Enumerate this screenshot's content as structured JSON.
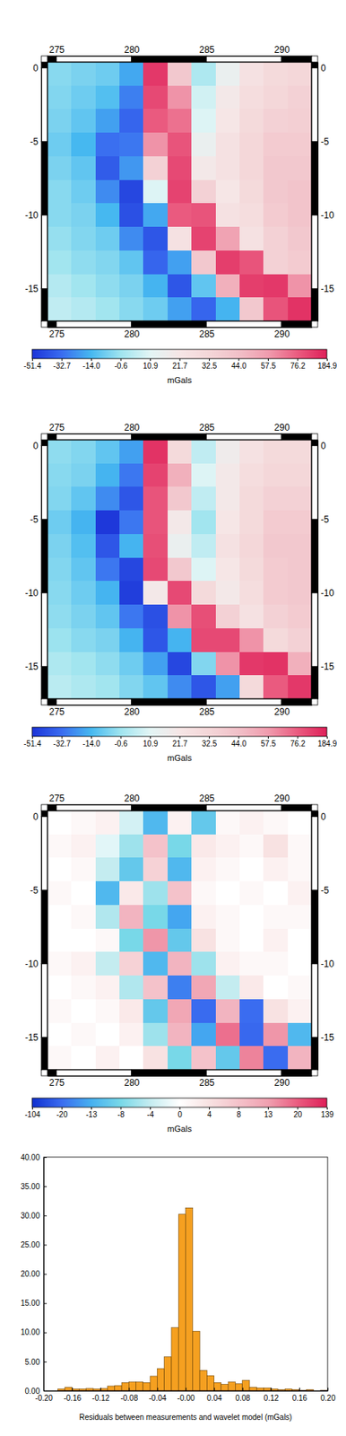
{
  "chart_data": [
    {
      "type": "heatmap",
      "xlim": [
        274.4,
        292.0
      ],
      "ylim": [
        -17.2,
        0.4
      ],
      "xticks": [
        275,
        280,
        285,
        290
      ],
      "yticks": [
        -15,
        -10,
        -5,
        0
      ],
      "x_edges": [
        274.4,
        276.0,
        277.6,
        279.2,
        280.8,
        282.4,
        284.0,
        285.6,
        287.2,
        288.8,
        290.4,
        292.0
      ],
      "y_edges": [
        0.4,
        -1.2,
        -2.8,
        -4.4,
        -6.0,
        -7.6,
        -9.2,
        -10.8,
        -12.4,
        -14.0,
        -15.6,
        -17.2
      ],
      "z": [
        [
          -4,
          -6,
          -8,
          -18,
          140,
          40,
          2,
          15,
          25,
          30,
          32
        ],
        [
          -5,
          -8,
          -12,
          -28,
          110,
          60,
          8,
          20,
          28,
          32,
          35
        ],
        [
          -6,
          -10,
          -20,
          -35,
          80,
          70,
          10,
          22,
          30,
          35,
          36
        ],
        [
          -8,
          -14,
          -32,
          -30,
          60,
          90,
          15,
          25,
          32,
          38,
          38
        ],
        [
          -6,
          -10,
          -38,
          -22,
          35,
          110,
          20,
          25,
          32,
          40,
          40
        ],
        [
          -4,
          -8,
          -25,
          -45,
          10,
          120,
          35,
          22,
          30,
          40,
          42
        ],
        [
          -4,
          -6,
          -14,
          -42,
          -18,
          80,
          90,
          25,
          28,
          38,
          42
        ],
        [
          -2,
          -5,
          -8,
          -25,
          -40,
          25,
          120,
          55,
          25,
          35,
          40
        ],
        [
          0,
          -3,
          -5,
          -10,
          -35,
          -20,
          40,
          130,
          90,
          35,
          38
        ],
        [
          3,
          0,
          -3,
          -6,
          -15,
          -40,
          -10,
          50,
          130,
          140,
          60
        ],
        [
          5,
          3,
          0,
          -4,
          -8,
          -20,
          -35,
          -15,
          40,
          90,
          150
        ]
      ],
      "colorbar": {
        "ticks": [
          -51.4,
          -32.7,
          {
            "value": -14,
            "label": "-14.0"
          },
          -0.6,
          10.9,
          21.7,
          32.5,
          {
            "value": 44,
            "label": "44.0"
          },
          57.5,
          76.2,
          184.9
        ],
        "label": "mGals"
      }
    },
    {
      "type": "heatmap",
      "xlim": [
        274.4,
        292.0
      ],
      "ylim": [
        -17.2,
        0.4
      ],
      "xticks": [
        275,
        280,
        285,
        290
      ],
      "yticks": [
        -15,
        -10,
        -5,
        0
      ],
      "x_edges": [
        274.4,
        276.0,
        277.6,
        279.2,
        280.8,
        282.4,
        284.0,
        285.6,
        287.2,
        288.8,
        290.4,
        292.0
      ],
      "y_edges": [
        0.4,
        -1.2,
        -2.8,
        -4.4,
        -6.0,
        -7.6,
        -9.2,
        -10.8,
        -12.4,
        -14.0,
        -15.6,
        -17.2
      ],
      "z": [
        [
          -3,
          -5,
          -10,
          -20,
          150,
          30,
          5,
          18,
          25,
          30,
          30
        ],
        [
          -4,
          -6,
          -15,
          -30,
          120,
          50,
          10,
          20,
          28,
          32,
          32
        ],
        [
          -5,
          -10,
          -25,
          -40,
          90,
          40,
          5,
          20,
          30,
          35,
          35
        ],
        [
          -8,
          -15,
          -50,
          -30,
          90,
          20,
          0,
          22,
          30,
          38,
          38
        ],
        [
          -6,
          -12,
          -40,
          -15,
          100,
          15,
          5,
          25,
          32,
          40,
          40
        ],
        [
          -5,
          -10,
          -30,
          -45,
          110,
          40,
          10,
          22,
          30,
          38,
          40
        ],
        [
          -4,
          -8,
          -15,
          -48,
          20,
          110,
          30,
          20,
          28,
          38,
          40
        ],
        [
          -3,
          -6,
          -10,
          -30,
          -42,
          60,
          100,
          35,
          25,
          35,
          38
        ],
        [
          -1,
          -4,
          -6,
          -15,
          -40,
          -15,
          110,
          110,
          60,
          30,
          35
        ],
        [
          2,
          0,
          -3,
          -8,
          -20,
          -45,
          -5,
          60,
          140,
          150,
          50
        ],
        [
          4,
          2,
          0,
          -5,
          -10,
          -25,
          -40,
          -20,
          30,
          80,
          140
        ]
      ],
      "colorbar": {
        "ticks": [
          -51.4,
          -32.7,
          {
            "value": -14,
            "label": "-14.0"
          },
          -0.6,
          10.9,
          21.7,
          32.5,
          {
            "value": 44,
            "label": "44.0"
          },
          57.5,
          76.2,
          184.9
        ],
        "label": "mGals"
      }
    },
    {
      "type": "heatmap",
      "xlim": [
        274.4,
        292.0
      ],
      "ylim": [
        -17.2,
        0.4
      ],
      "xticks": [
        275,
        280,
        285,
        290
      ],
      "yticks": [
        -15,
        -10,
        -5,
        0
      ],
      "x_edges": [
        274.4,
        276.0,
        277.6,
        279.2,
        280.8,
        282.4,
        284.0,
        285.6,
        287.2,
        288.8,
        290.4,
        292.0
      ],
      "y_edges": [
        0.4,
        -1.2,
        -2.8,
        -4.4,
        -6.0,
        -7.6,
        -9.2,
        -10.8,
        -12.4,
        -14.0,
        -15.6,
        -17.2
      ],
      "z": [
        [
          0,
          1,
          2,
          -3,
          -12,
          2,
          -10,
          1,
          2,
          1,
          0
        ],
        [
          1,
          2,
          -2,
          -6,
          8,
          -8,
          3,
          2,
          1,
          4,
          1
        ],
        [
          0,
          1,
          -4,
          -10,
          6,
          -12,
          2,
          1,
          0,
          2,
          1
        ],
        [
          1,
          0,
          -12,
          3,
          -6,
          8,
          1,
          0,
          1,
          0,
          2
        ],
        [
          0,
          1,
          -5,
          10,
          -8,
          -14,
          2,
          1,
          0,
          1,
          1
        ],
        [
          0,
          0,
          1,
          -8,
          14,
          -10,
          4,
          1,
          0,
          2,
          0
        ],
        [
          1,
          2,
          -4,
          6,
          -12,
          10,
          -6,
          2,
          1,
          1,
          0
        ],
        [
          0,
          1,
          2,
          -5,
          8,
          -18,
          12,
          -4,
          3,
          0,
          1
        ],
        [
          1,
          0,
          1,
          3,
          -10,
          12,
          -22,
          10,
          -20,
          4,
          2
        ],
        [
          0,
          1,
          0,
          2,
          -6,
          10,
          -14,
          18,
          -25,
          14,
          -12
        ],
        [
          1,
          0,
          2,
          0,
          4,
          -8,
          8,
          -10,
          16,
          -20,
          10
        ]
      ],
      "colorbar": {
        "ticks": [
          -104,
          -20,
          -13,
          -8,
          -4,
          0,
          4,
          8,
          13,
          20,
          139
        ],
        "label": "mGals"
      }
    },
    {
      "type": "histogram",
      "x_label": "Residuals between measurements and wavelet model (mGals)",
      "bins": [
        -0.2,
        -0.19,
        -0.18,
        -0.17,
        -0.16,
        -0.15,
        -0.14,
        -0.13,
        -0.12,
        -0.11,
        -0.1,
        -0.09,
        -0.08,
        -0.07,
        -0.06,
        -0.05,
        -0.04,
        -0.03,
        -0.02,
        -0.01,
        0,
        0.01,
        0.02,
        0.03,
        0.04,
        0.05,
        0.06,
        0.07,
        0.08,
        0.09,
        0.1,
        0.11,
        0.12,
        0.13,
        0.14,
        0.15,
        0.16,
        0.17,
        0.18,
        0.19,
        0.2
      ],
      "values": [
        0,
        0,
        0.3,
        0.6,
        0.3,
        0.3,
        0.4,
        0.3,
        0.4,
        0.8,
        0.9,
        1.4,
        1.5,
        1.5,
        1.4,
        2.5,
        3.8,
        5.8,
        10.8,
        30.2,
        31.3,
        10.2,
        3.5,
        2.6,
        1.4,
        1.1,
        1.5,
        1.2,
        1.8,
        0.6,
        0.5,
        0.5,
        0.3,
        0.2,
        0.3,
        0.2,
        0.1,
        0.2,
        0,
        0.1
      ],
      "color": "#f5a020",
      "xlim": [
        -0.2,
        0.2
      ],
      "ylim": [
        0,
        40
      ],
      "xticks": [
        {
          "value": -0.2,
          "label": "-0.20"
        },
        {
          "value": -0.16,
          "label": "-0.16"
        },
        {
          "value": -0.12,
          "label": "-0.12"
        },
        {
          "value": -0.08,
          "label": "-0.08"
        },
        {
          "value": -0.04,
          "label": "-0.04"
        },
        {
          "value": 0,
          "label": "-0.00"
        },
        {
          "value": 0.04,
          "label": "0.04"
        },
        {
          "value": 0.08,
          "label": "0.08"
        },
        {
          "value": 0.12,
          "label": "0.12"
        },
        {
          "value": 0.16,
          "label": "0.16"
        },
        {
          "value": 0.2,
          "label": "0.20"
        }
      ],
      "yticks": [
        {
          "value": 0,
          "label": "0.00"
        },
        {
          "value": 5,
          "label": "5.00"
        },
        {
          "value": 10,
          "label": "10.00"
        },
        {
          "value": 15,
          "label": "15.00"
        },
        {
          "value": 20,
          "label": "20.00"
        },
        {
          "value": 25,
          "label": "25.00"
        },
        {
          "value": 30,
          "label": "30.00"
        },
        {
          "value": 35,
          "label": "35.00"
        },
        {
          "value": 40,
          "label": "40.00"
        }
      ]
    }
  ]
}
